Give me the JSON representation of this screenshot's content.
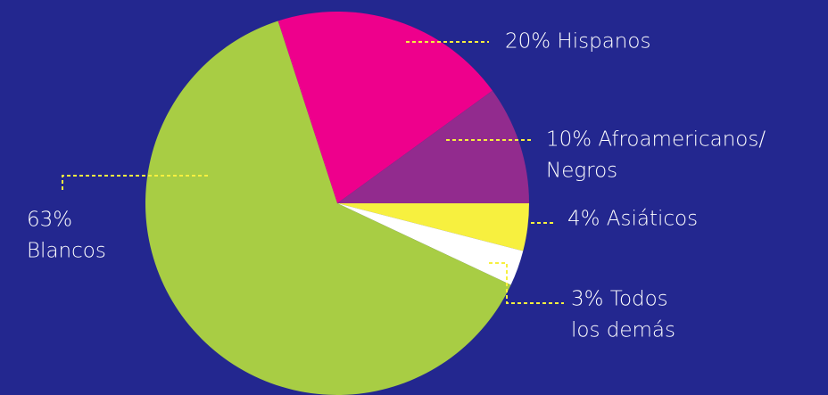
{
  "chart_data": {
    "type": "pie",
    "categories": [
      "Hispanos",
      "Afroamericanos/Negros",
      "Asiáticos",
      "Todos los demás",
      "Blancos"
    ],
    "values": [
      20,
      10,
      4,
      3,
      63
    ],
    "value_labels": [
      [
        "20% Hispanos"
      ],
      [
        "10% Afroamericanos/",
        "Negros"
      ],
      [
        "4% Asiáticos"
      ],
      [
        "3% Todos",
        "los demás"
      ],
      [
        "63%",
        "Blancos"
      ]
    ],
    "colors": [
      "#ee008c",
      "#922b8e",
      "#f7f03f",
      "#ffffff",
      "#a8cd44"
    ]
  }
}
